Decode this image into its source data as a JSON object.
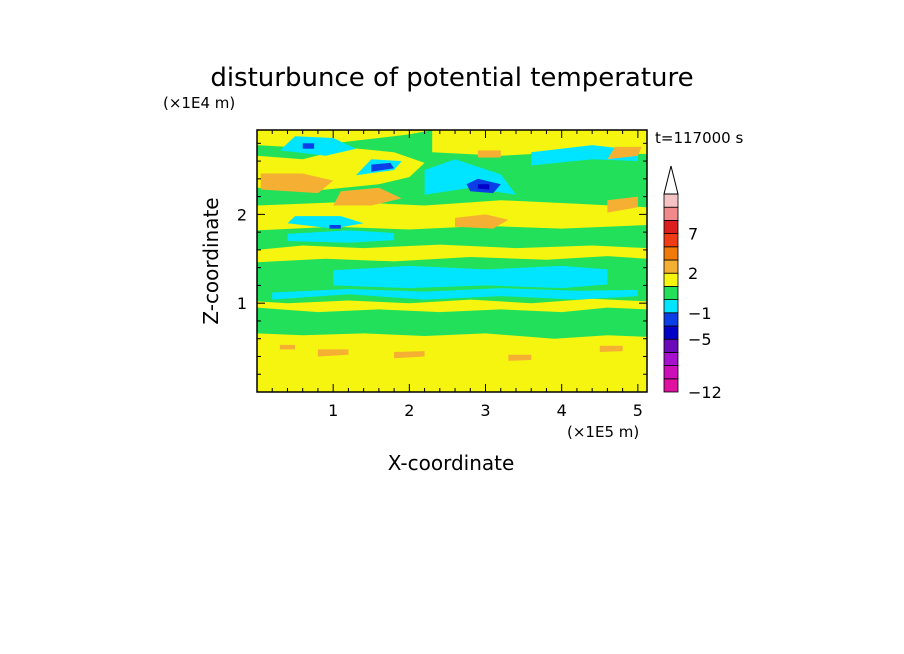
{
  "chart_data": {
    "type": "heatmap",
    "title": "disturbunce of potential temperature",
    "time_label": "t=117000 s",
    "xlabel": "X-coordinate",
    "ylabel": "Z-coordinate",
    "x_multiplier": "(×1E5 m)",
    "y_multiplier": "(×1E4 m)",
    "xlim": [
      0,
      5.12
    ],
    "ylim": [
      0,
      2.95
    ],
    "x_ticks": [
      {
        "value": 1,
        "label": "1"
      },
      {
        "value": 2,
        "label": "2"
      },
      {
        "value": 3,
        "label": "3"
      },
      {
        "value": 4,
        "label": "4"
      },
      {
        "value": 5,
        "label": "5"
      }
    ],
    "y_ticks": [
      {
        "value": 1,
        "label": "1"
      },
      {
        "value": 2,
        "label": "2"
      }
    ],
    "x_minor_step": 0.2,
    "y_minor_step": 0.2,
    "colorbar": {
      "levels": [
        {
          "color": "#e0119f"
        },
        {
          "color": "#cc0fb8"
        },
        {
          "color": "#a511cc"
        },
        {
          "color": "#6b0ab8"
        },
        {
          "color": "#0000c8"
        },
        {
          "color": "#0a3ee6"
        },
        {
          "color": "#00e5ff"
        },
        {
          "color": "#22e05a"
        },
        {
          "color": "#f5f50f"
        },
        {
          "color": "#f5b033"
        },
        {
          "color": "#f07a0a"
        },
        {
          "color": "#f03c14"
        },
        {
          "color": "#dc1e1e"
        },
        {
          "color": "#f08a8a"
        },
        {
          "color": "#f5c3c3"
        }
      ],
      "labels": [
        {
          "level_index": 0,
          "text": "−12"
        },
        {
          "level_index": 4,
          "text": "−5"
        },
        {
          "level_index": 6,
          "text": "−1"
        },
        {
          "level_index": 9,
          "text": "2"
        },
        {
          "level_index": 12,
          "text": "7"
        }
      ],
      "extend_max": true
    },
    "background_color": "#22e05a",
    "regions": [
      {
        "value": "2",
        "color": "#f5f50f",
        "points": [
          [
            0,
            0
          ],
          [
            5.12,
            0
          ],
          [
            5.12,
            0.62
          ],
          [
            4.6,
            0.64
          ],
          [
            3.9,
            0.6
          ],
          [
            3.0,
            0.66
          ],
          [
            2.2,
            0.63
          ],
          [
            1.4,
            0.66
          ],
          [
            0.6,
            0.64
          ],
          [
            0,
            0.66
          ]
        ]
      },
      {
        "value": "2",
        "color": "#f5f50f",
        "points": [
          [
            0,
            0.95
          ],
          [
            0.8,
            0.9
          ],
          [
            1.6,
            0.93
          ],
          [
            2.4,
            0.9
          ],
          [
            3.2,
            0.93
          ],
          [
            4.0,
            0.9
          ],
          [
            4.6,
            0.95
          ],
          [
            5.12,
            0.93
          ],
          [
            5.12,
            1.02
          ],
          [
            4.4,
            1.05
          ],
          [
            3.6,
            1.0
          ],
          [
            2.8,
            1.04
          ],
          [
            2.0,
            1.0
          ],
          [
            1.2,
            1.03
          ],
          [
            0.4,
            1.0
          ],
          [
            0,
            1.02
          ]
        ]
      },
      {
        "value": "-1",
        "color": "#00e5ff",
        "points": [
          [
            0.2,
            1.04
          ],
          [
            1.2,
            1.1
          ],
          [
            2.2,
            1.04
          ],
          [
            3.2,
            1.08
          ],
          [
            4.2,
            1.04
          ],
          [
            5.0,
            1.08
          ],
          [
            5.0,
            1.15
          ],
          [
            4.2,
            1.14
          ],
          [
            3.2,
            1.17
          ],
          [
            2.2,
            1.13
          ],
          [
            1.2,
            1.16
          ],
          [
            0.2,
            1.12
          ]
        ]
      },
      {
        "value": "-1",
        "color": "#00e5ff",
        "points": [
          [
            1.0,
            1.2
          ],
          [
            2.0,
            1.17
          ],
          [
            3.0,
            1.2
          ],
          [
            4.0,
            1.17
          ],
          [
            4.6,
            1.21
          ],
          [
            4.6,
            1.38
          ],
          [
            4.0,
            1.42
          ],
          [
            3.0,
            1.38
          ],
          [
            2.0,
            1.42
          ],
          [
            1.0,
            1.37
          ]
        ]
      },
      {
        "value": "2",
        "color": "#f5f50f",
        "points": [
          [
            0,
            1.46
          ],
          [
            0.9,
            1.5
          ],
          [
            1.8,
            1.47
          ],
          [
            2.8,
            1.52
          ],
          [
            3.8,
            1.49
          ],
          [
            4.6,
            1.53
          ],
          [
            5.12,
            1.5
          ],
          [
            5.12,
            1.62
          ],
          [
            4.4,
            1.65
          ],
          [
            3.4,
            1.62
          ],
          [
            2.4,
            1.66
          ],
          [
            1.4,
            1.62
          ],
          [
            0.6,
            1.65
          ],
          [
            0,
            1.6
          ]
        ]
      },
      {
        "value": "-1",
        "color": "#00e5ff",
        "points": [
          [
            0.4,
            1.7
          ],
          [
            1.2,
            1.68
          ],
          [
            1.8,
            1.71
          ],
          [
            1.8,
            1.79
          ],
          [
            1.2,
            1.82
          ],
          [
            0.4,
            1.78
          ]
        ]
      },
      {
        "value": "2",
        "color": "#f5f50f",
        "points": [
          [
            0,
            1.82
          ],
          [
            1.0,
            1.86
          ],
          [
            2.0,
            1.83
          ],
          [
            3.0,
            1.87
          ],
          [
            4.0,
            1.84
          ],
          [
            5.12,
            1.88
          ],
          [
            5.12,
            2.08
          ],
          [
            4.2,
            2.12
          ],
          [
            3.2,
            2.16
          ],
          [
            2.2,
            2.1
          ],
          [
            1.2,
            2.14
          ],
          [
            0,
            2.1
          ]
        ]
      },
      {
        "value": "2",
        "color": "#f5f50f",
        "points": [
          [
            0,
            2.3
          ],
          [
            0.8,
            2.27
          ],
          [
            1.6,
            2.34
          ],
          [
            2.0,
            2.42
          ],
          [
            2.2,
            2.58
          ],
          [
            1.8,
            2.7
          ],
          [
            1.2,
            2.75
          ],
          [
            0.6,
            2.62
          ],
          [
            0,
            2.66
          ]
        ]
      },
      {
        "value": "2",
        "color": "#f5f50f",
        "points": [
          [
            2.3,
            2.7
          ],
          [
            3.2,
            2.66
          ],
          [
            4.0,
            2.7
          ],
          [
            5.12,
            2.68
          ],
          [
            5.12,
            2.95
          ],
          [
            2.3,
            2.95
          ]
        ]
      },
      {
        "value": "2",
        "color": "#f5f50f",
        "points": [
          [
            0,
            2.78
          ],
          [
            0.6,
            2.75
          ],
          [
            1.2,
            2.82
          ],
          [
            2.0,
            2.9
          ],
          [
            2.3,
            2.95
          ],
          [
            0,
            2.95
          ]
        ]
      },
      {
        "value": "-1",
        "color": "#00e5ff",
        "points": [
          [
            0.3,
            2.72
          ],
          [
            0.9,
            2.66
          ],
          [
            1.3,
            2.74
          ],
          [
            1.0,
            2.86
          ],
          [
            0.5,
            2.88
          ]
        ]
      },
      {
        "value": "-1",
        "color": "#00e5ff",
        "points": [
          [
            3.6,
            2.55
          ],
          [
            4.4,
            2.62
          ],
          [
            5.0,
            2.6
          ],
          [
            5.0,
            2.72
          ],
          [
            4.4,
            2.78
          ],
          [
            3.6,
            2.7
          ]
        ]
      },
      {
        "value": "-1",
        "color": "#00e5ff",
        "points": [
          [
            2.2,
            2.22
          ],
          [
            2.8,
            2.3
          ],
          [
            3.4,
            2.22
          ],
          [
            3.2,
            2.45
          ],
          [
            2.6,
            2.62
          ],
          [
            2.2,
            2.5
          ]
        ]
      },
      {
        "value": "-1",
        "color": "#00e5ff",
        "points": [
          [
            1.3,
            2.44
          ],
          [
            1.8,
            2.5
          ],
          [
            1.9,
            2.6
          ],
          [
            1.5,
            2.62
          ]
        ]
      },
      {
        "value": "-1",
        "color": "#00e5ff",
        "points": [
          [
            0.4,
            1.9
          ],
          [
            1.0,
            1.84
          ],
          [
            1.4,
            1.9
          ],
          [
            1.1,
            1.98
          ],
          [
            0.5,
            1.98
          ]
        ]
      },
      {
        "value": "2",
        "color": "#f5b033",
        "points": [
          [
            0.05,
            2.28
          ],
          [
            0.8,
            2.24
          ],
          [
            1.0,
            2.38
          ],
          [
            0.6,
            2.46
          ],
          [
            0.05,
            2.46
          ]
        ]
      },
      {
        "value": "2",
        "color": "#f5b033",
        "points": [
          [
            1.0,
            2.1
          ],
          [
            1.5,
            2.1
          ],
          [
            1.9,
            2.18
          ],
          [
            1.6,
            2.3
          ],
          [
            1.1,
            2.26
          ]
        ]
      },
      {
        "value": "2",
        "color": "#f5b033",
        "points": [
          [
            2.6,
            1.86
          ],
          [
            3.1,
            1.84
          ],
          [
            3.3,
            1.94
          ],
          [
            3.0,
            2.0
          ],
          [
            2.6,
            1.96
          ]
        ]
      },
      {
        "value": "2",
        "color": "#f5b033",
        "points": [
          [
            4.6,
            2.02
          ],
          [
            5.0,
            2.08
          ],
          [
            5.0,
            2.2
          ],
          [
            4.6,
            2.16
          ]
        ]
      },
      {
        "value": "2",
        "color": "#f5b033",
        "points": [
          [
            4.6,
            2.62
          ],
          [
            5.0,
            2.66
          ],
          [
            5.05,
            2.76
          ],
          [
            4.7,
            2.76
          ]
        ]
      },
      {
        "value": "2",
        "color": "#f5b033",
        "points": [
          [
            2.9,
            2.64
          ],
          [
            3.2,
            2.64
          ],
          [
            3.2,
            2.72
          ],
          [
            2.9,
            2.72
          ]
        ]
      },
      {
        "value": "2",
        "color": "#f5b033",
        "points": [
          [
            0.8,
            0.4
          ],
          [
            1.2,
            0.42
          ],
          [
            1.2,
            0.48
          ],
          [
            0.8,
            0.48
          ]
        ]
      },
      {
        "value": "2",
        "color": "#f5b033",
        "points": [
          [
            1.8,
            0.38
          ],
          [
            2.2,
            0.4
          ],
          [
            2.2,
            0.46
          ],
          [
            1.8,
            0.45
          ]
        ]
      },
      {
        "value": "2",
        "color": "#f5b033",
        "points": [
          [
            3.3,
            0.35
          ],
          [
            3.6,
            0.36
          ],
          [
            3.6,
            0.42
          ],
          [
            3.3,
            0.42
          ]
        ]
      },
      {
        "value": "2",
        "color": "#f5b033",
        "points": [
          [
            0.3,
            0.48
          ],
          [
            0.5,
            0.48
          ],
          [
            0.5,
            0.53
          ],
          [
            0.3,
            0.53
          ]
        ]
      },
      {
        "value": "2",
        "color": "#f5b033",
        "points": [
          [
            4.5,
            0.45
          ],
          [
            4.8,
            0.46
          ],
          [
            4.8,
            0.52
          ],
          [
            4.5,
            0.52
          ]
        ]
      },
      {
        "value": "-5",
        "color": "#0a3ee6",
        "points": [
          [
            2.8,
            2.26
          ],
          [
            3.1,
            2.24
          ],
          [
            3.2,
            2.34
          ],
          [
            2.9,
            2.4
          ],
          [
            2.75,
            2.34
          ]
        ]
      },
      {
        "value": "-5",
        "color": "#0a3ee6",
        "points": [
          [
            1.5,
            2.48
          ],
          [
            1.8,
            2.52
          ],
          [
            1.75,
            2.58
          ],
          [
            1.5,
            2.56
          ]
        ]
      },
      {
        "value": "-5",
        "color": "#0a3ee6",
        "points": [
          [
            0.6,
            2.74
          ],
          [
            0.75,
            2.74
          ],
          [
            0.75,
            2.8
          ],
          [
            0.6,
            2.8
          ]
        ]
      },
      {
        "value": "-5",
        "color": "#0a3ee6",
        "points": [
          [
            0.95,
            1.84
          ],
          [
            1.1,
            1.84
          ],
          [
            1.1,
            1.88
          ],
          [
            0.95,
            1.88
          ]
        ]
      },
      {
        "value": "-5",
        "color": "#0000c8",
        "points": [
          [
            2.9,
            2.29
          ],
          [
            3.05,
            2.28
          ],
          [
            3.05,
            2.34
          ],
          [
            2.9,
            2.34
          ]
        ]
      }
    ]
  }
}
